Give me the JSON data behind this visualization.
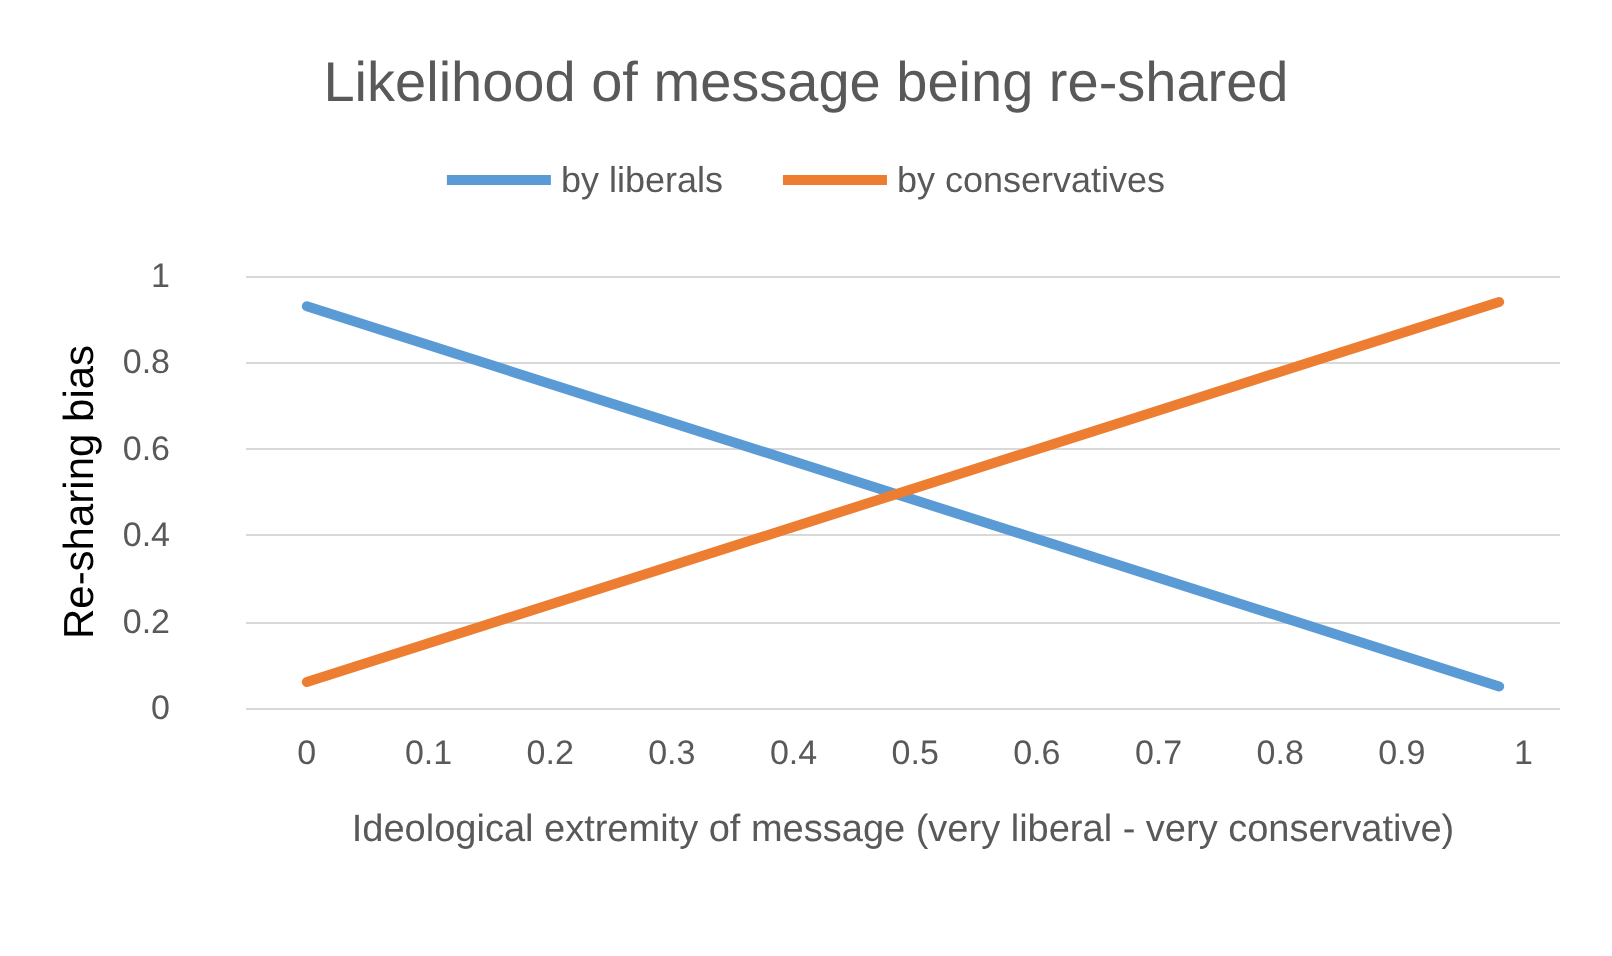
{
  "chart_data": {
    "type": "line",
    "title": "Likelihood of message being re-shared",
    "xlabel": "Ideological extremity of message (very liberal - very conservative)",
    "ylabel": "Re-sharing bias",
    "x": [
      0,
      0.98
    ],
    "series": [
      {
        "name": "by liberals",
        "color": "#5b9bd5",
        "values": [
          0.93,
          0.05
        ]
      },
      {
        "name": "by conservatives",
        "color": "#ed7d31",
        "values": [
          0.06,
          0.94
        ]
      }
    ],
    "xlim": [
      -0.05,
      1.03
    ],
    "xticks": [
      0,
      0.1,
      0.2,
      0.3,
      0.4,
      0.5,
      0.6,
      0.7,
      0.8,
      0.9,
      1
    ],
    "ylim": [
      0,
      1
    ],
    "yticks": [
      0,
      0.2,
      0.4,
      0.6,
      0.8,
      1
    ],
    "grid": "y",
    "legend": "top",
    "marker": "none",
    "line_style": "solid"
  }
}
